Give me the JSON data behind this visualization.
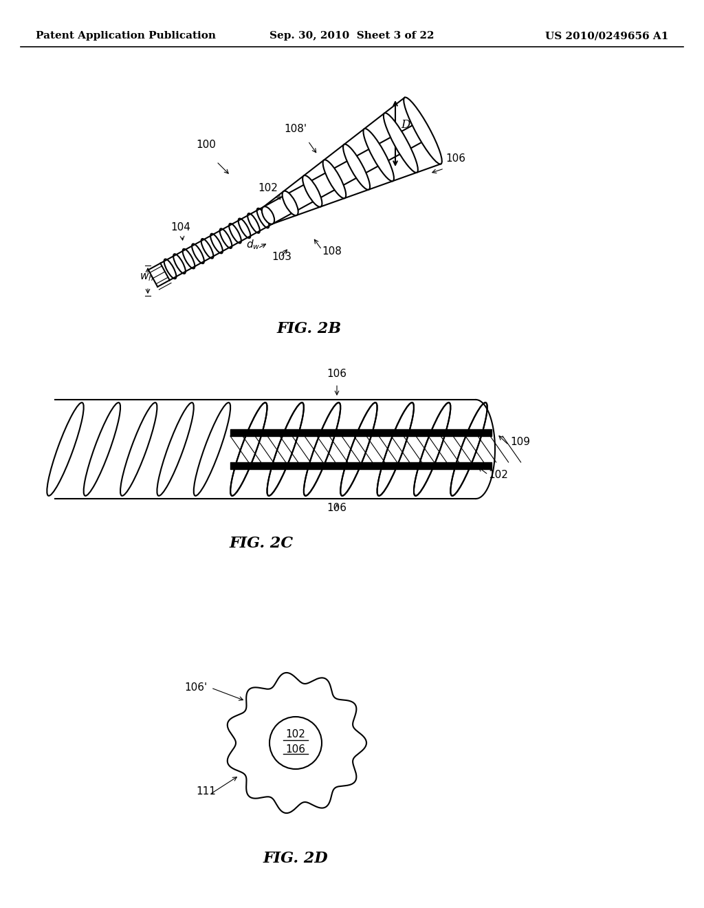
{
  "background_color": "#ffffff",
  "header_left": "Patent Application Publication",
  "header_center": "Sep. 30, 2010  Sheet 3 of 22",
  "header_right": "US 2010/0249656 A1",
  "header_fontsize": 11,
  "fig2b_label": "FIG. 2B",
  "fig2c_label": "FIG. 2C",
  "fig2d_label": "FIG. 2D",
  "label_fontsize": 15,
  "annotation_fontsize": 11,
  "line_color": "#000000",
  "line_width": 1.5
}
